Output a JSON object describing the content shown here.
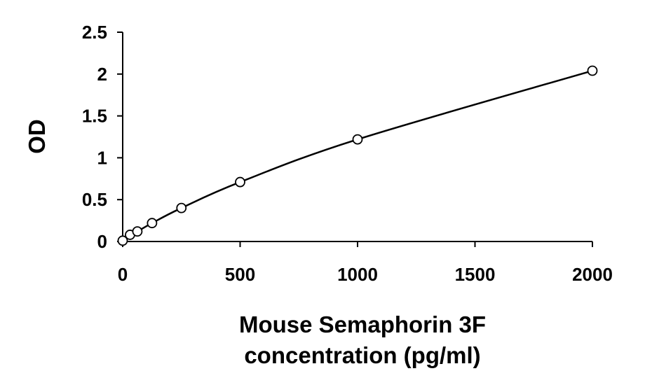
{
  "chart_data": {
    "type": "scatter",
    "title": "",
    "xlabel_lines": [
      "Mouse Semaphorin 3F",
      "concentration (pg/ml)"
    ],
    "ylabel": "OD",
    "xlim": [
      0,
      2000
    ],
    "ylim": [
      0,
      2.5
    ],
    "x_ticks": [
      0,
      500,
      1000,
      1500,
      2000
    ],
    "x_tick_labels": [
      "0",
      "500",
      "1000",
      "1500",
      "2000"
    ],
    "y_ticks": [
      0,
      0.5,
      1,
      1.5,
      2,
      2.5
    ],
    "y_tick_labels": [
      "0",
      "0.5",
      "1",
      "1.5",
      "2",
      "2.5"
    ],
    "grid": false,
    "legend": "none",
    "trendline": "smooth curve through points",
    "series": [
      {
        "points": [
          {
            "x": 0,
            "y": 0.01
          },
          {
            "x": 31.25,
            "y": 0.08
          },
          {
            "x": 62.5,
            "y": 0.12
          },
          {
            "x": 125,
            "y": 0.22
          },
          {
            "x": 250,
            "y": 0.4
          },
          {
            "x": 500,
            "y": 0.71
          },
          {
            "x": 1000,
            "y": 1.22
          },
          {
            "x": 2000,
            "y": 2.04
          }
        ]
      }
    ],
    "colors": {
      "axis": "#000000",
      "line": "#000000",
      "marker_stroke": "#000000",
      "marker_fill": "#ffffff"
    }
  }
}
